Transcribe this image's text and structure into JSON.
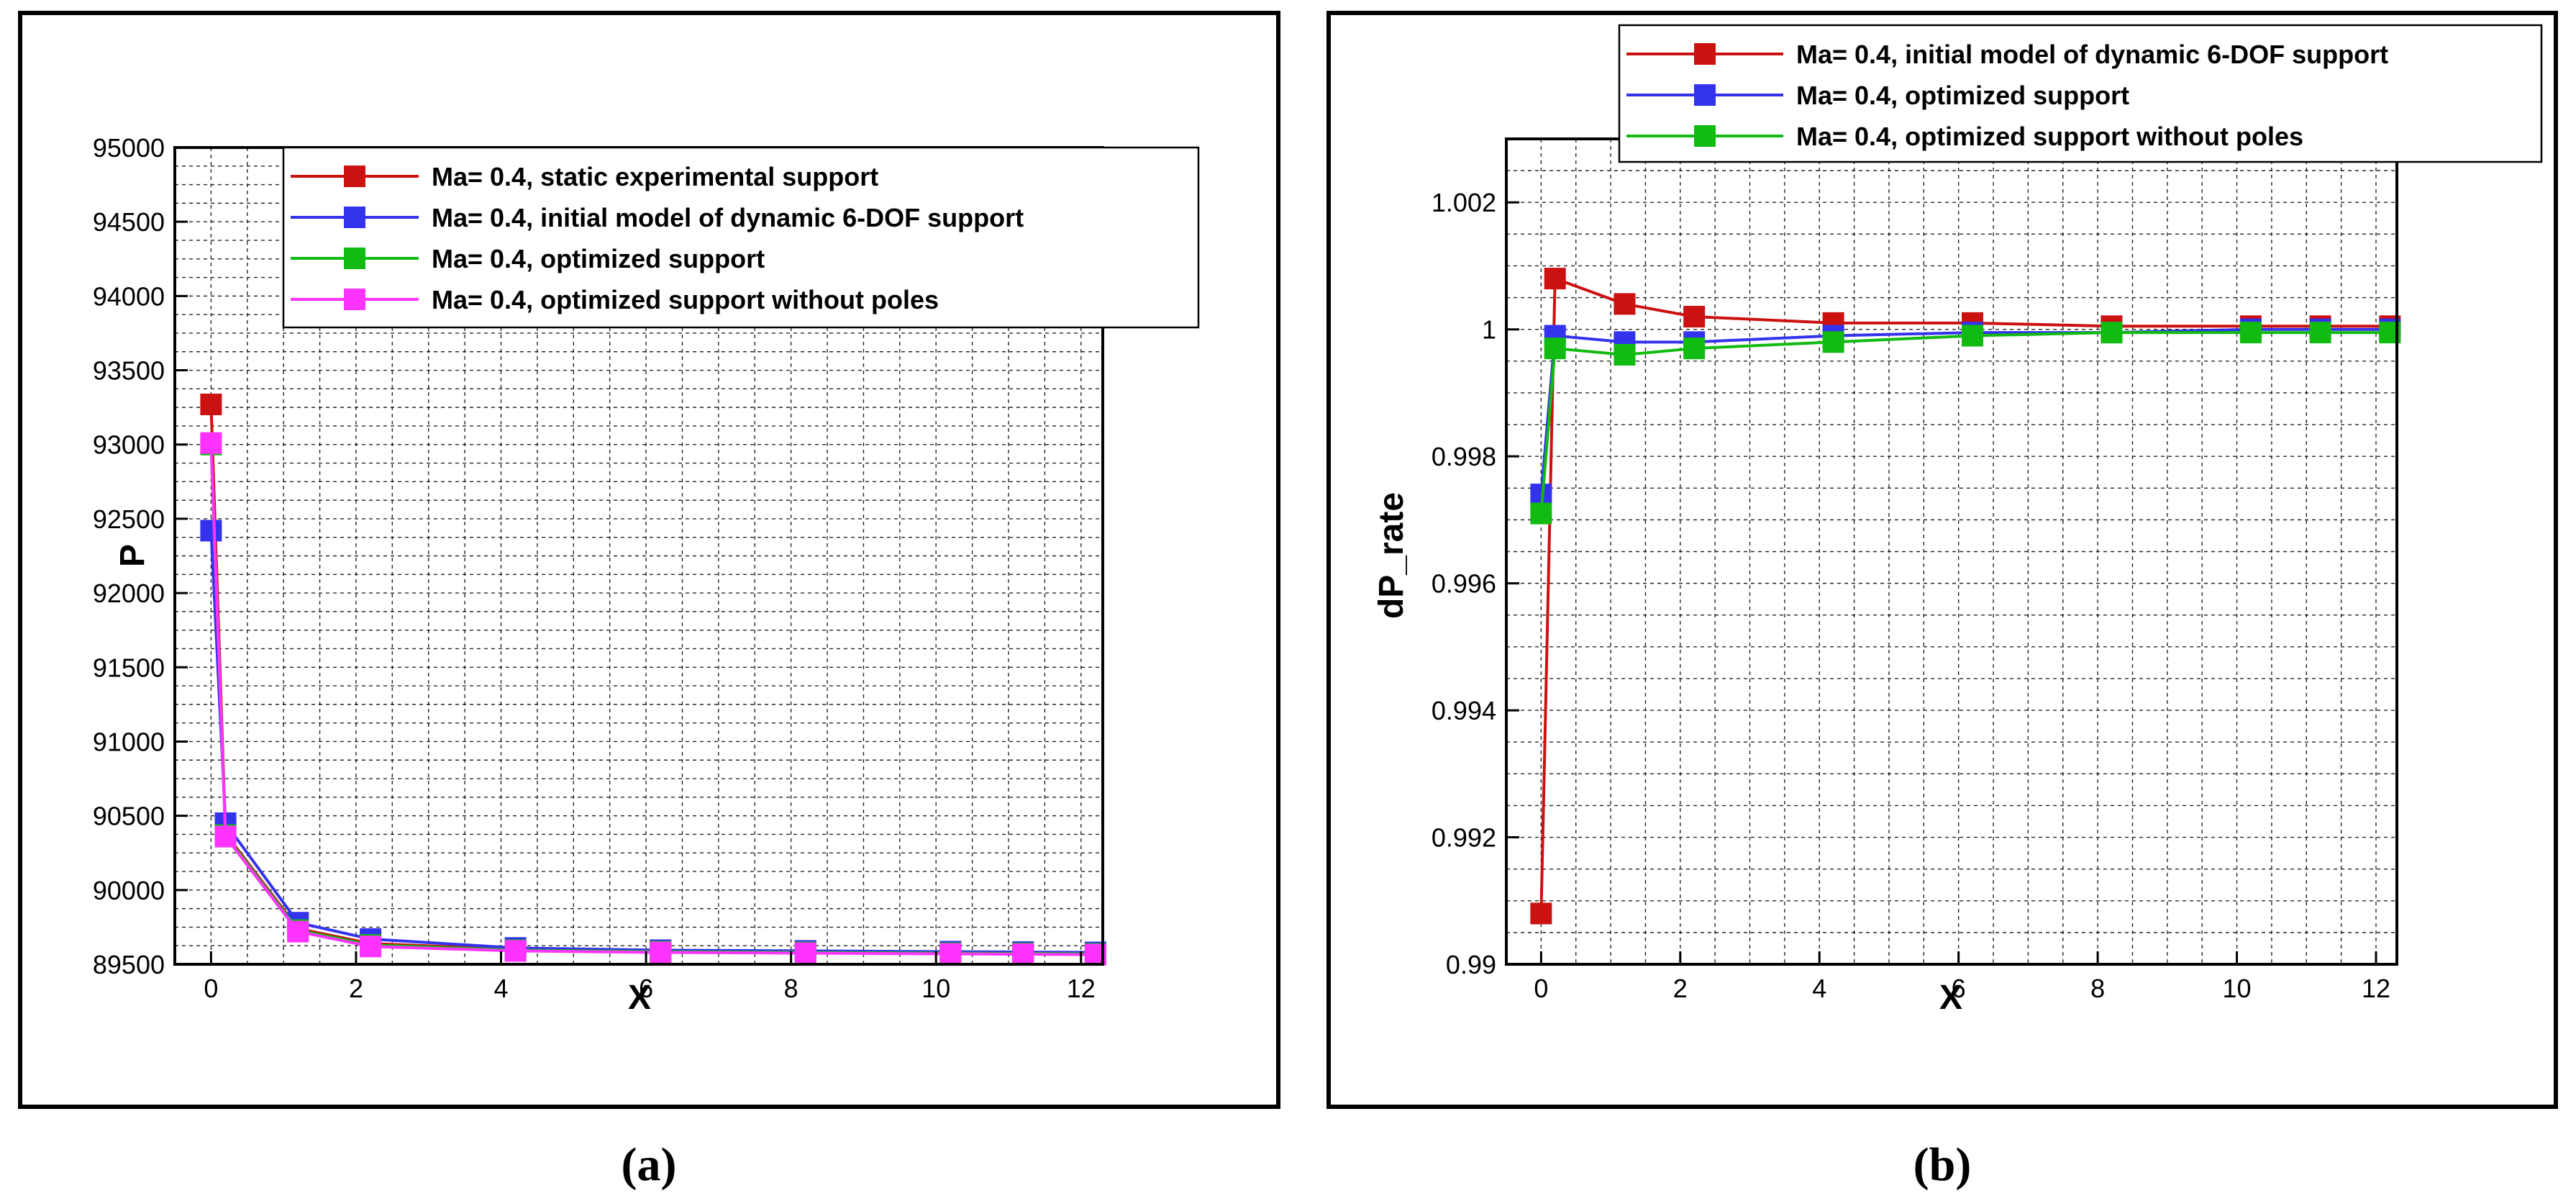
{
  "chart_data": [
    {
      "type": "line",
      "caption": "(a)",
      "xlabel": "X",
      "ylabel": "P",
      "xlim": [
        -0.5,
        12.3
      ],
      "ylim": [
        89500,
        95000
      ],
      "xticks": [
        0,
        2,
        4,
        6,
        8,
        10,
        12
      ],
      "yticks": [
        89500,
        90000,
        90500,
        91000,
        91500,
        92000,
        92500,
        93000,
        93500,
        94000,
        94500,
        95000
      ],
      "grid": true,
      "legend_position": "top-right",
      "x": [
        0,
        0.2,
        1.2,
        2.2,
        4.2,
        6.2,
        8.2,
        10.2,
        11.2,
        12.2
      ],
      "series": [
        {
          "name": "Ma= 0.4, static experimental support",
          "color": "#cc1111",
          "values": [
            93270,
            90380,
            89740,
            89640,
            89600,
            89590,
            89585,
            89580,
            89578,
            89575
          ]
        },
        {
          "name": "Ma= 0.4, initial model of dynamic 6-DOF support",
          "color": "#3333ee",
          "values": [
            92420,
            90450,
            89780,
            89670,
            89610,
            89595,
            89590,
            89585,
            89582,
            89580
          ]
        },
        {
          "name": "Ma= 0.4, optimized support",
          "color": "#11bb11",
          "values": [
            93000,
            90370,
            89730,
            89630,
            89595,
            89585,
            89580,
            89575,
            89573,
            89570
          ]
        },
        {
          "name": "Ma= 0.4, optimized support without poles",
          "color": "#ff33ff",
          "values": [
            93010,
            90360,
            89720,
            89620,
            89590,
            89580,
            89575,
            89570,
            89568,
            89565
          ]
        }
      ]
    },
    {
      "type": "line",
      "caption": "(b)",
      "xlabel": "X",
      "ylabel": "dP_rate",
      "xlim": [
        -0.5,
        12.3
      ],
      "ylim": [
        0.99,
        1.003
      ],
      "xticks": [
        0,
        2,
        4,
        6,
        8,
        10,
        12
      ],
      "yticks": [
        0.99,
        0.992,
        0.994,
        0.996,
        0.998,
        1,
        1.002
      ],
      "ytick_labels": [
        "0.99",
        "0.992",
        "0.994",
        "0.996",
        "0.998",
        "1",
        "1.002"
      ],
      "grid": true,
      "legend_position": "top-right",
      "x": [
        0,
        0.2,
        1.2,
        2.2,
        4.2,
        6.2,
        8.2,
        10.2,
        11.2,
        12.2
      ],
      "series": [
        {
          "name": "Ma= 0.4, initial model of dynamic 6-DOF support",
          "color": "#cc1111",
          "values": [
            0.9908,
            1.0008,
            1.0004,
            1.0002,
            1.0001,
            1.0001,
            1.00005,
            1.00005,
            1.00005,
            1.00005
          ]
        },
        {
          "name": "Ma= 0.4, optimized support",
          "color": "#3333ee",
          "values": [
            0.9974,
            0.9999,
            0.9998,
            0.9998,
            0.9999,
            0.99995,
            0.99995,
            1.0,
            1.0,
            1.0
          ]
        },
        {
          "name": "Ma= 0.4, optimized support without poles",
          "color": "#11bb11",
          "values": [
            0.9971,
            0.9997,
            0.9996,
            0.9997,
            0.9998,
            0.9999,
            0.99995,
            0.99995,
            0.99995,
            0.99995
          ]
        }
      ]
    }
  ]
}
